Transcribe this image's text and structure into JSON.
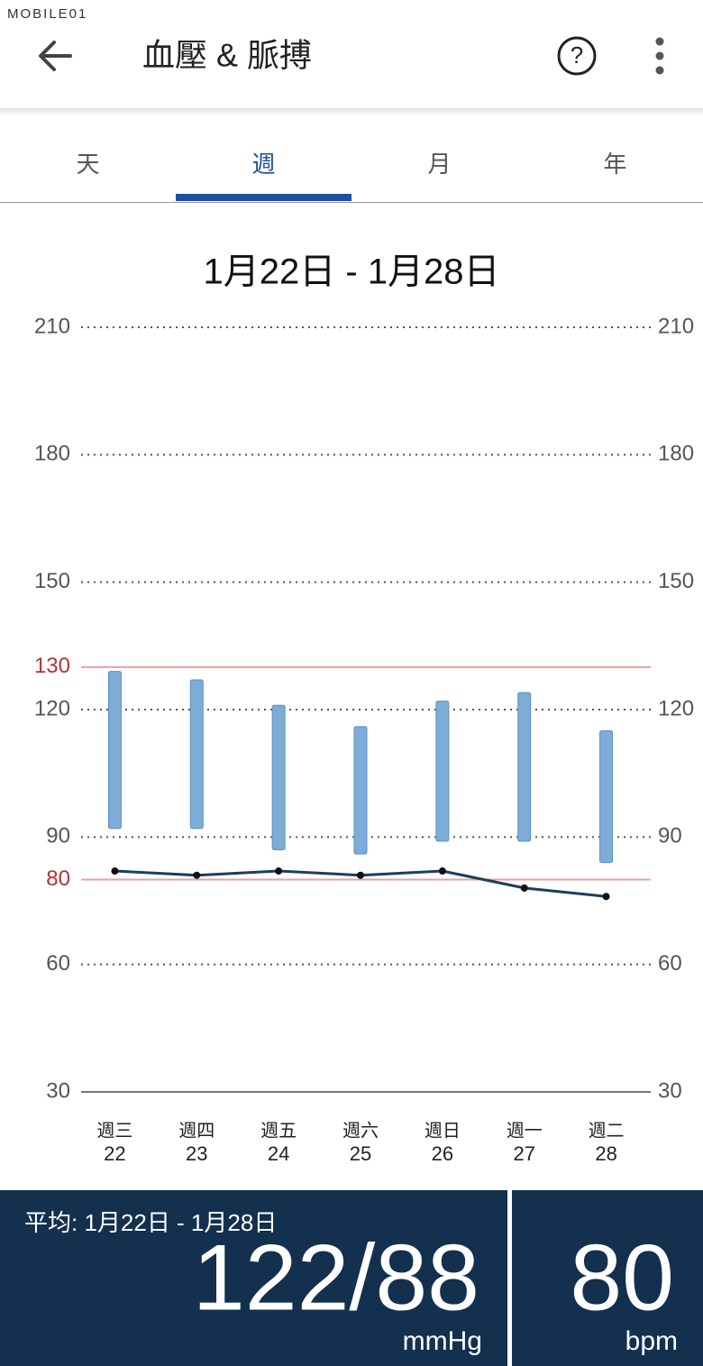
{
  "watermark": "MOBILE01",
  "header": {
    "title": "血壓 & 脈搏"
  },
  "tabs": [
    "天",
    "週",
    "月",
    "年"
  ],
  "selected_tab": 1,
  "date_range": "1月22日 - 1月28日",
  "chart_data": {
    "type": "range",
    "categories": [
      "週三",
      "週四",
      "週五",
      "週六",
      "週日",
      "週一",
      "週二"
    ],
    "category_days": [
      "22",
      "23",
      "24",
      "25",
      "26",
      "27",
      "28"
    ],
    "series": [
      {
        "type": "range",
        "color": "#7dadd6",
        "low": [
          92,
          92,
          87,
          86,
          89,
          89,
          84
        ],
        "high": [
          129,
          127,
          121,
          116,
          122,
          124,
          115
        ]
      },
      {
        "type": "line",
        "color": "#1d3d5e",
        "values": [
          82,
          81,
          82,
          81,
          82,
          78,
          76
        ]
      }
    ],
    "ylim": [
      30,
      210
    ],
    "yticks": [
      30,
      60,
      90,
      120,
      150,
      180,
      210
    ],
    "y2lim": [
      30,
      210
    ],
    "y2ticks": [
      30,
      60,
      90,
      120,
      150,
      180,
      210
    ],
    "reference_lines": [
      {
        "value": 130,
        "color": "#e8a0a0",
        "label_color": "#b03535"
      },
      {
        "value": 80,
        "color": "#e8a0a0",
        "label_color": "#b03535"
      }
    ],
    "grid": true
  },
  "summary": {
    "label": "平均: 1月22日 - 1月28日",
    "blood_pressure": "122/88",
    "bp_unit": "mmHg",
    "pulse": "80",
    "pulse_unit": "bpm"
  }
}
